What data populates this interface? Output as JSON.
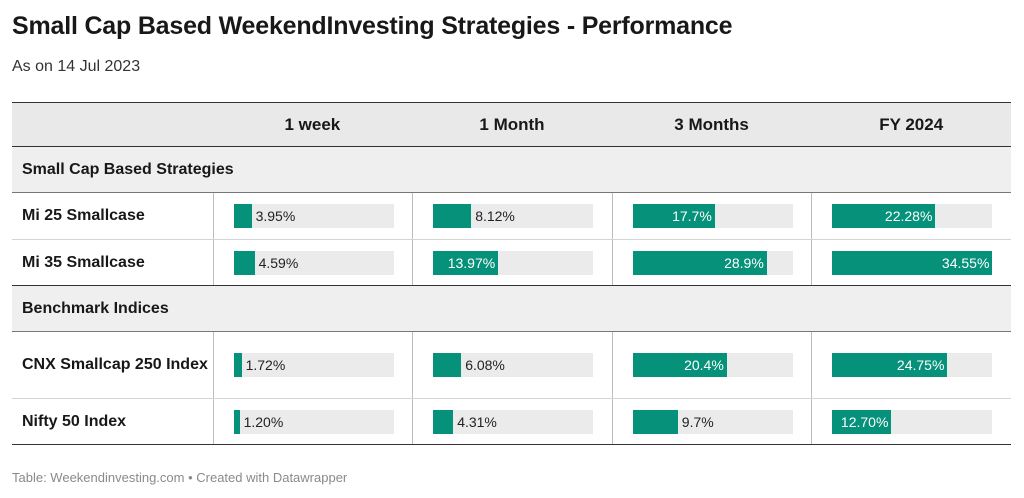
{
  "header": {
    "title": "Small Cap Based WeekendInvesting Strategies - Performance",
    "subtitle": "As on 14 Jul 2023"
  },
  "columns": [
    "1 week",
    "1 Month",
    "3 Months",
    "FY 2024"
  ],
  "groups": [
    {
      "label": "Small Cap Based Strategies"
    },
    {
      "label": "Benchmark Indices"
    }
  ],
  "footer": "Table: Weekendinvesting.com • Created with Datawrapper",
  "colors": {
    "bar": "#06927a",
    "track": "#ebebeb",
    "header_bg": "#e9e9e9"
  },
  "chart_data": {
    "type": "table",
    "columns": [
      "1 week",
      "1 Month",
      "3 Months",
      "FY 2024"
    ],
    "rows": [
      {
        "group": "Small Cap Based Strategies",
        "name": "Mi 25 Smallcase",
        "values": [
          3.95,
          8.12,
          17.7,
          22.28
        ],
        "labels": [
          "3.95%",
          "8.12%",
          "17.7%",
          "22.28%"
        ]
      },
      {
        "group": "Small Cap Based Strategies",
        "name": "Mi 35 Smallcase",
        "values": [
          4.59,
          13.97,
          28.9,
          34.55
        ],
        "labels": [
          "4.59%",
          "13.97%",
          "28.9%",
          "34.55%"
        ]
      },
      {
        "group": "Benchmark Indices",
        "name": "CNX Smallcap 250 Index",
        "values": [
          1.72,
          6.08,
          20.4,
          24.75
        ],
        "labels": [
          "1.72%",
          "6.08%",
          "20.4%",
          "24.75%"
        ]
      },
      {
        "group": "Benchmark Indices",
        "name": "Nifty 50 Index",
        "values": [
          1.2,
          4.31,
          9.7,
          12.7
        ],
        "labels": [
          "1.20%",
          "4.31%",
          "9.7%",
          "12.70%"
        ]
      }
    ]
  }
}
